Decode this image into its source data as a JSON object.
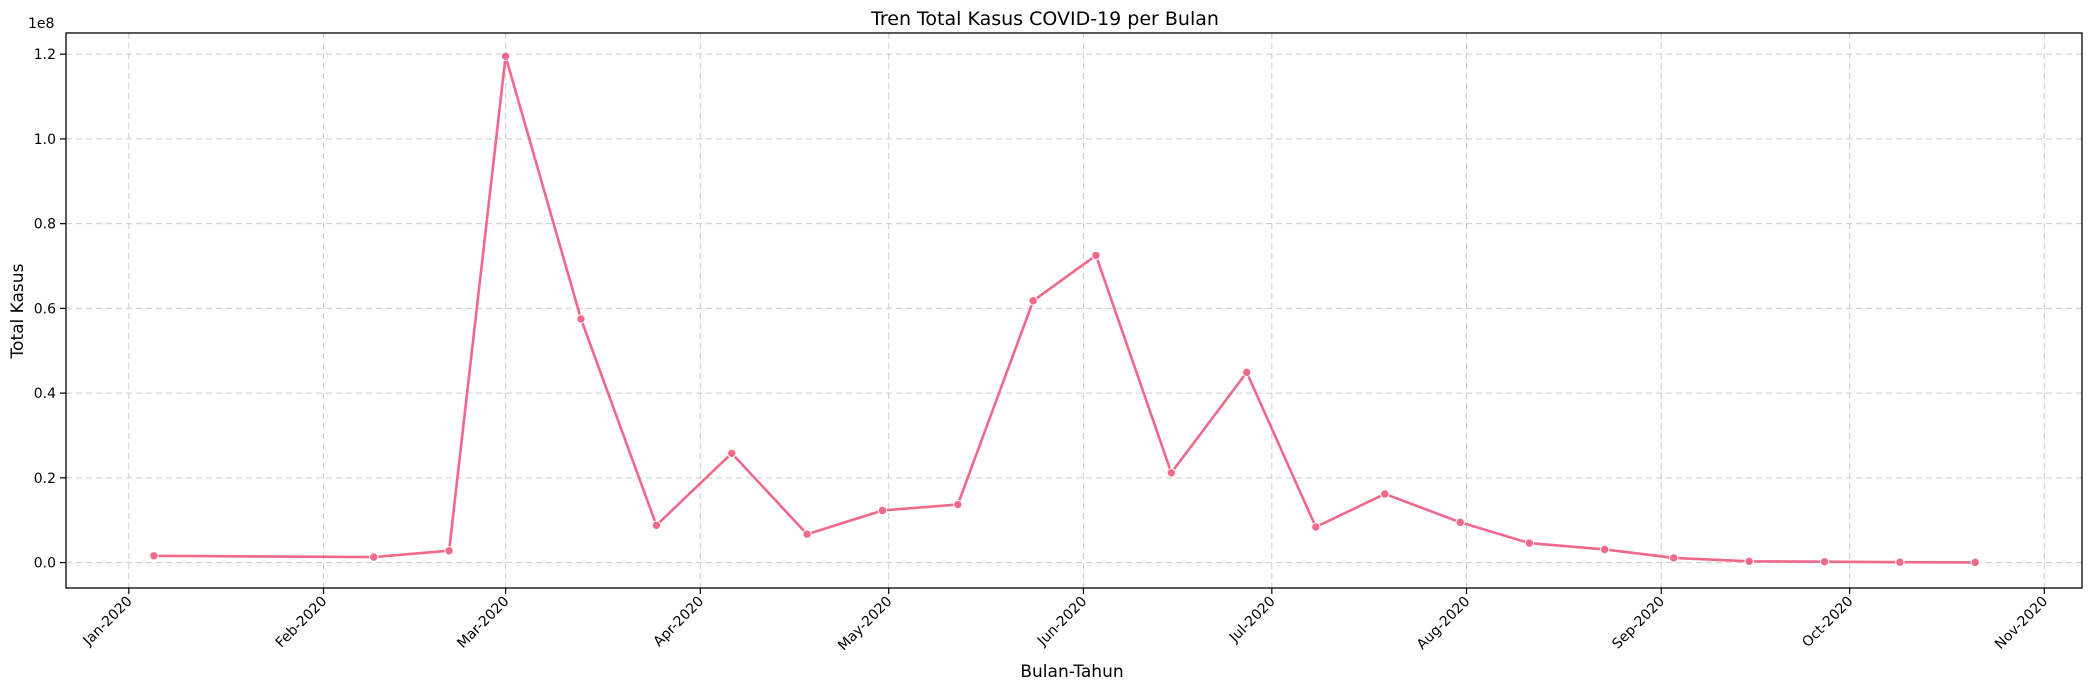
{
  "chart_data": {
    "type": "line",
    "title": "Tren Total Kasus COVID-19 per Bulan",
    "xlabel": "Bulan-Tahun",
    "ylabel": "Total Kasus",
    "y_offset_text": "1e8",
    "y_scale_multiplier": 100000000,
    "ylim": [
      -6000000,
      125000000
    ],
    "xlim": [
      "2019-12-22",
      "2020-11-07"
    ],
    "y_ticks": [
      0,
      20000000,
      40000000,
      60000000,
      80000000,
      100000000,
      120000000
    ],
    "y_tick_labels": [
      "0.0",
      "0.2",
      "0.4",
      "0.6",
      "0.8",
      "1.0",
      "1.2"
    ],
    "x_ticks": [
      "2020-01-01",
      "2020-02-01",
      "2020-03-01",
      "2020-04-01",
      "2020-05-01",
      "2020-06-01",
      "2020-07-01",
      "2020-08-01",
      "2020-09-01",
      "2020-10-01",
      "2020-11-01"
    ],
    "x_tick_labels": [
      "Jan-2020",
      "Feb-2020",
      "Mar-2020",
      "Apr-2020",
      "May-2020",
      "Jun-2020",
      "Jul-2020",
      "Aug-2020",
      "Sep-2020",
      "Oct-2020",
      "Nov-2020"
    ],
    "grid": true,
    "color": "#f0698a",
    "series": [
      {
        "x": [
          "2020-01-05",
          "2020-02-09",
          "2020-02-21",
          "2020-03-01",
          "2020-03-13",
          "2020-03-25",
          "2020-04-06",
          "2020-04-18",
          "2020-04-30",
          "2020-05-12",
          "2020-05-24",
          "2020-06-03",
          "2020-06-15",
          "2020-06-27",
          "2020-07-08",
          "2020-07-19",
          "2020-07-31",
          "2020-08-11",
          "2020-08-23",
          "2020-09-03",
          "2020-09-15",
          "2020-09-27",
          "2020-10-09",
          "2020-10-21"
        ],
        "y": [
          1600000,
          1300000,
          2800000,
          119500000,
          57500000,
          8800000,
          25800000,
          6700000,
          12300000,
          13700000,
          61800000,
          72500000,
          21200000,
          44900000,
          8400000,
          16200000,
          9500000,
          4600000,
          3100000,
          1100000,
          300000,
          200000,
          100000,
          50000
        ]
      }
    ]
  }
}
